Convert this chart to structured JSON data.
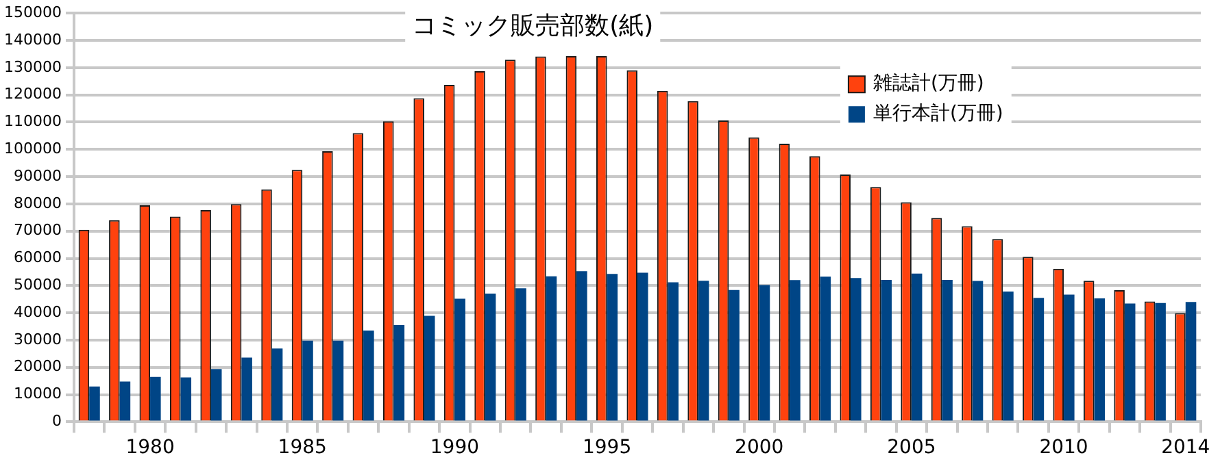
{
  "chart_data": {
    "type": "bar",
    "title": "コミック販売部数(紙)",
    "categories": [
      null,
      null,
      "1980",
      null,
      null,
      null,
      null,
      "1985",
      null,
      null,
      null,
      null,
      "1990",
      null,
      null,
      null,
      null,
      "1995",
      null,
      null,
      null,
      null,
      "2000",
      null,
      null,
      null,
      null,
      "2005",
      null,
      null,
      null,
      null,
      "2010",
      null,
      null,
      null,
      "2014"
    ],
    "series": [
      {
        "name": "雑誌計(万冊)",
        "color": "#ff420e",
        "values": [
          70500,
          74000,
          79500,
          75300,
          77700,
          79900,
          85300,
          92500,
          99300,
          106000,
          110300,
          118800,
          123700,
          128700,
          132900,
          134100,
          134200,
          134200,
          129000,
          121500,
          117700,
          110600,
          104400,
          102100,
          97500,
          90800,
          86200,
          80600,
          74800,
          71800,
          67100,
          60600,
          56200,
          51800,
          48300,
          44200,
          39900
        ]
      },
      {
        "name": "単行本計(万冊)",
        "color": "#004586",
        "values": [
          13000,
          14800,
          16500,
          16300,
          19400,
          23600,
          26900,
          29800,
          29800,
          33500,
          35500,
          38900,
          45200,
          47100,
          49000,
          53400,
          55300,
          54300,
          54700,
          51200,
          51800,
          48400,
          50200,
          52000,
          53300,
          52800,
          52100,
          54400,
          52100,
          51700,
          47800,
          45500,
          46700,
          45300,
          43400,
          43600,
          44000
        ]
      }
    ],
    "ylim": [
      0,
      150000
    ],
    "yticks": [
      0,
      10000,
      20000,
      30000,
      40000,
      50000,
      60000,
      70000,
      80000,
      90000,
      100000,
      110000,
      120000,
      130000,
      140000,
      150000
    ],
    "grid": "y",
    "legend": "top right"
  }
}
